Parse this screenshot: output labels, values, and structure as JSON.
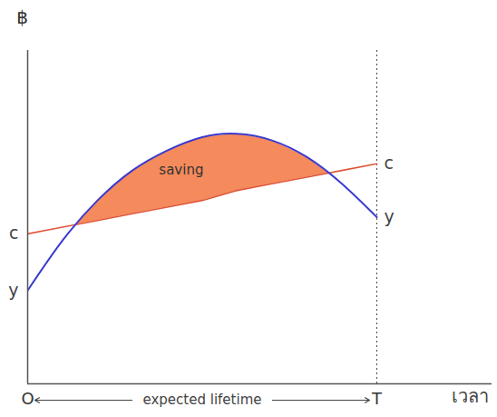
{
  "chart_data": {
    "type": "line",
    "x_label": "เวลา",
    "y_label": "฿",
    "x": [
      0,
      10,
      20,
      30,
      40,
      50,
      60,
      70,
      80,
      90,
      100
    ],
    "series": [
      {
        "name": "y",
        "color": "#3b3bd0",
        "values": [
          28,
          43,
          55,
          64,
          70,
          74,
          75,
          73,
          68,
          60,
          50
        ]
      },
      {
        "name": "c",
        "color": "#e0573a",
        "values": [
          45,
          47,
          49,
          51,
          53,
          55,
          58,
          60,
          62,
          64,
          66
        ]
      }
    ],
    "xlim": [
      0,
      133
    ],
    "ylim": [
      0,
      100
    ],
    "xticks": [
      {
        "value": 0,
        "label": "O"
      },
      {
        "value": 100,
        "label": "T"
      }
    ],
    "tick_labels": "x",
    "annotations": [
      {
        "text": "saving",
        "x": 44,
        "y": 64,
        "color": "#f58a5c"
      },
      {
        "text": "expected lifetime",
        "x": [
          0,
          100
        ]
      }
    ]
  }
}
